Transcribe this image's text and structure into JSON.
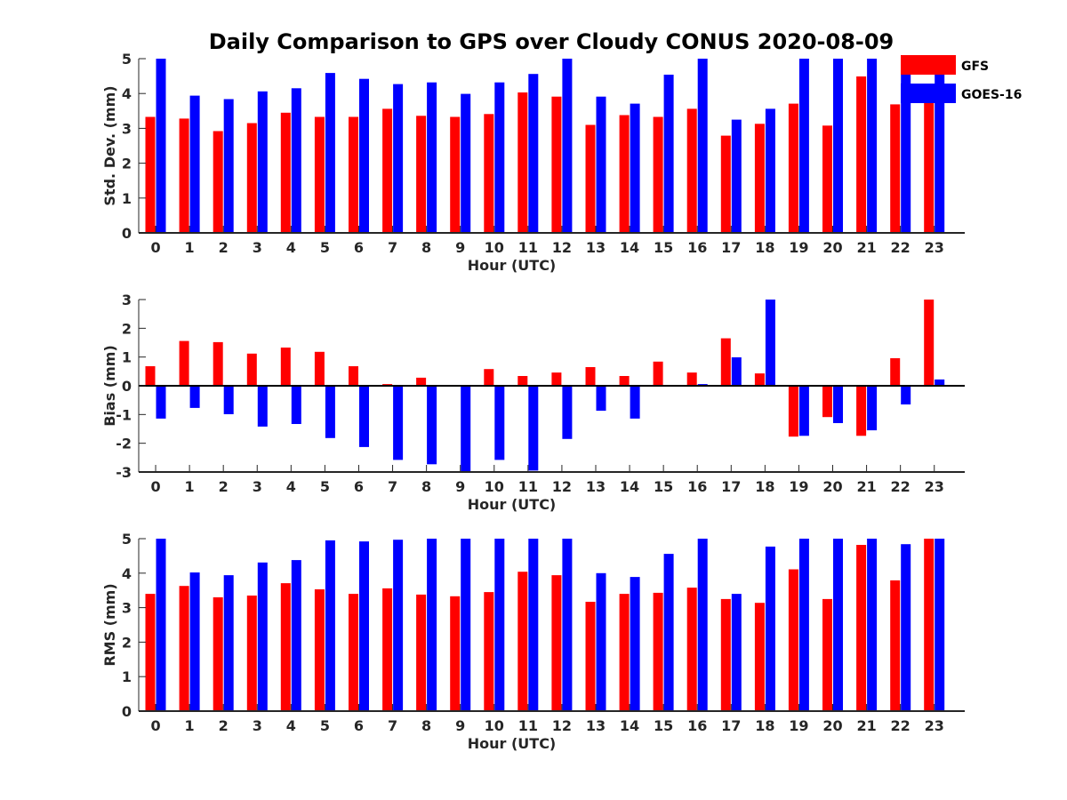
{
  "title": "Daily Comparison to GPS over Cloudy CONUS 2020-08-09",
  "legend": {
    "placement": "top-right",
    "entries": [
      {
        "name": "GFS",
        "color": "#ff0000"
      },
      {
        "name": "GOES-16",
        "color": "#0000ff"
      }
    ]
  },
  "chart_data": [
    {
      "type": "bar",
      "categories": [
        "0",
        "1",
        "2",
        "3",
        "4",
        "5",
        "6",
        "7",
        "8",
        "9",
        "10",
        "11",
        "12",
        "13",
        "14",
        "15",
        "16",
        "17",
        "18",
        "19",
        "20",
        "21",
        "22",
        "23"
      ],
      "xlabel": "Hour (UTC)",
      "ylabel": "Std. Dev. (mm)",
      "ylim": [
        0,
        5
      ],
      "yticks": [
        "0",
        "1",
        "2",
        "3",
        "4",
        "5"
      ],
      "series": [
        {
          "name": "GFS",
          "color": "#ff0000",
          "values": [
            3.33,
            3.28,
            2.92,
            3.15,
            3.45,
            3.33,
            3.33,
            3.56,
            3.36,
            3.33,
            3.41,
            4.03,
            3.91,
            3.1,
            3.38,
            3.33,
            3.56,
            2.79,
            3.13,
            3.71,
            3.08,
            4.49,
            3.69,
            3.9
          ]
        },
        {
          "name": "GOES-16",
          "color": "#0000ff",
          "values": [
            5.0,
            3.94,
            3.84,
            4.06,
            4.15,
            4.59,
            4.42,
            4.27,
            4.32,
            3.99,
            4.32,
            4.56,
            5.0,
            3.91,
            3.71,
            4.54,
            5.0,
            3.25,
            3.56,
            5.0,
            5.0,
            5.0,
            4.82,
            4.65
          ]
        }
      ]
    },
    {
      "type": "bar",
      "categories": [
        "0",
        "1",
        "2",
        "3",
        "4",
        "5",
        "6",
        "7",
        "8",
        "9",
        "10",
        "11",
        "12",
        "13",
        "14",
        "15",
        "16",
        "17",
        "18",
        "19",
        "20",
        "21",
        "22",
        "23"
      ],
      "xlabel": "Hour (UTC)",
      "ylabel": "Bias (mm)",
      "ylim": [
        -3,
        3
      ],
      "yticks": [
        "-3",
        "-2",
        "-1",
        "0",
        "1",
        "2",
        "3"
      ],
      "series": [
        {
          "name": "GFS",
          "color": "#ff0000",
          "values": [
            0.68,
            1.56,
            1.52,
            1.12,
            1.33,
            1.18,
            0.68,
            0.06,
            0.28,
            0.0,
            0.58,
            0.34,
            0.46,
            0.65,
            0.34,
            0.84,
            0.46,
            1.65,
            0.43,
            -1.77,
            -1.09,
            -1.74,
            0.96,
            3.0
          ]
        },
        {
          "name": "GOES-16",
          "color": "#0000ff",
          "values": [
            -1.14,
            -0.77,
            -0.99,
            -1.42,
            -1.33,
            -1.82,
            -2.13,
            -2.58,
            -2.73,
            -3.0,
            -2.58,
            -2.95,
            -1.85,
            -0.87,
            -1.14,
            0.03,
            0.06,
            0.99,
            3.0,
            -1.74,
            -1.3,
            -1.55,
            -0.65,
            0.22
          ]
        }
      ]
    },
    {
      "type": "bar",
      "categories": [
        "0",
        "1",
        "2",
        "3",
        "4",
        "5",
        "6",
        "7",
        "8",
        "9",
        "10",
        "11",
        "12",
        "13",
        "14",
        "15",
        "16",
        "17",
        "18",
        "19",
        "20",
        "21",
        "22",
        "23"
      ],
      "xlabel": "Hour (UTC)",
      "ylabel": "RMS (mm)",
      "ylim": [
        0,
        5
      ],
      "yticks": [
        "0",
        "1",
        "2",
        "3",
        "4",
        "5"
      ],
      "series": [
        {
          "name": "GFS",
          "color": "#ff0000",
          "values": [
            3.4,
            3.63,
            3.3,
            3.35,
            3.71,
            3.53,
            3.4,
            3.56,
            3.38,
            3.33,
            3.45,
            4.04,
            3.94,
            3.17,
            3.4,
            3.43,
            3.58,
            3.25,
            3.14,
            4.11,
            3.25,
            4.82,
            3.79,
            5.0
          ]
        },
        {
          "name": "GOES-16",
          "color": "#0000ff",
          "values": [
            5.0,
            4.02,
            3.94,
            4.31,
            4.38,
            4.95,
            4.92,
            4.97,
            5.0,
            5.0,
            5.0,
            5.0,
            5.0,
            4.0,
            3.89,
            4.56,
            5.0,
            3.4,
            4.77,
            5.0,
            5.0,
            5.0,
            4.84,
            5.0
          ]
        }
      ]
    }
  ]
}
